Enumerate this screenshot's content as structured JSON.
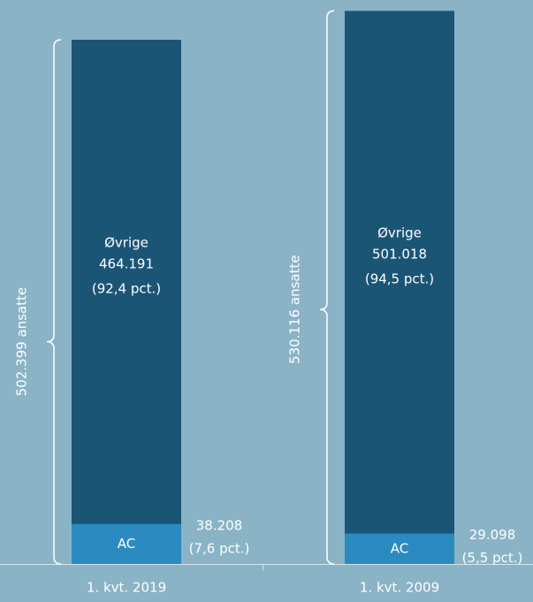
{
  "chart_data": {
    "type": "stacked-bar",
    "categories": [
      "1. kvt. 2019",
      "1. kvt. 2009"
    ],
    "series": [
      {
        "name": "AC",
        "color": "#2b8bc0",
        "values": [
          38208,
          29098
        ],
        "value_labels": [
          "38.208",
          "29.098"
        ],
        "shares": [
          7.6,
          5.5
        ],
        "share_labels": [
          "(7,6 pct.)",
          "(5,5 pct.)"
        ]
      },
      {
        "name": "Øvrige",
        "color": "#1b5576",
        "values": [
          464191,
          501018
        ],
        "value_labels": [
          "464.191",
          "501.018"
        ],
        "shares": [
          92.4,
          94.5
        ],
        "share_labels": [
          "(92,4 pct.)",
          "(94,5 pct.)"
        ]
      }
    ],
    "totals": [
      502399,
      530116
    ],
    "total_labels": [
      "502.399 ansatte",
      "530.116 ansatte"
    ]
  }
}
